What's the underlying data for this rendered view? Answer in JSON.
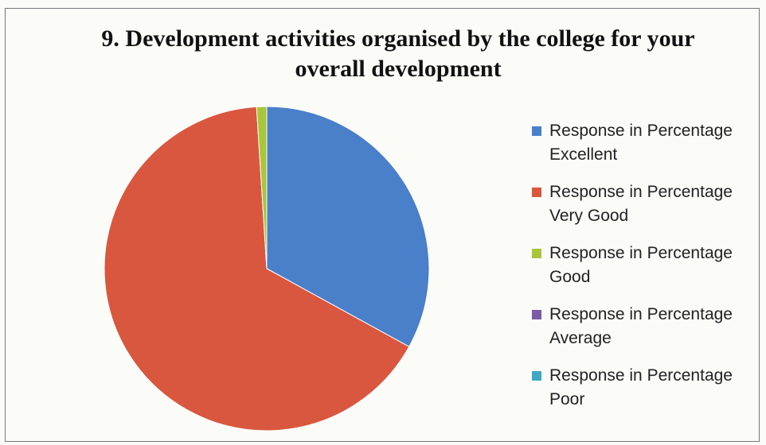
{
  "chart_data": {
    "type": "pie",
    "title": "9. Development activities organised by the college for your overall development",
    "categories": [
      "Response in Percentage Excellent",
      "Response in Percentage Very Good",
      "Response in Percentage Good",
      "Response in Percentage Average",
      "Response in Percentage Poor"
    ],
    "values": [
      33,
      66,
      1,
      0,
      0
    ],
    "colors": [
      "#4a7fc9",
      "#d9573e",
      "#a8c63a",
      "#7b5aa6",
      "#3fa7c6"
    ],
    "legend": "right"
  }
}
